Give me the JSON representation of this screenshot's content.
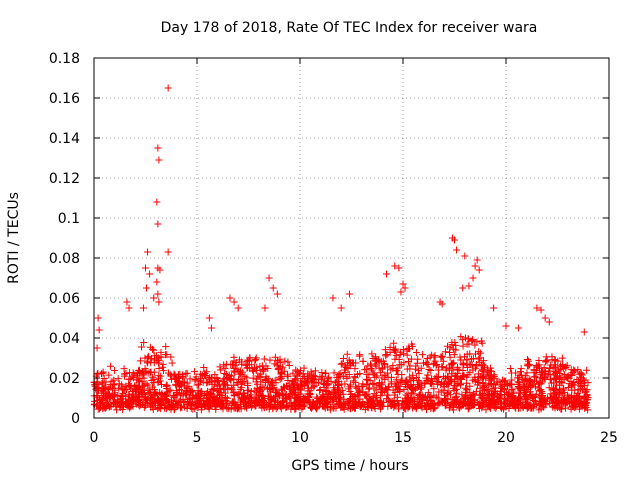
{
  "chart_data": {
    "type": "scatter",
    "title": "Day 178 of 2018, Rate Of TEC Index for receiver wara",
    "xlabel": "GPS time / hours",
    "ylabel": "ROTI / TECUs",
    "xlim": [
      0,
      25
    ],
    "ylim": [
      0,
      0.18
    ],
    "xticks": [
      0,
      5,
      10,
      15,
      20,
      25
    ],
    "yticks": [
      0,
      0.02,
      0.04,
      0.06,
      0.08,
      0.1,
      0.12,
      0.14,
      0.16,
      0.18
    ],
    "xtick_labels": [
      "0",
      "5",
      "10",
      "15",
      "20",
      "25"
    ],
    "ytick_labels": [
      "0",
      "0.02",
      "0.04",
      "0.06",
      "0.08",
      "0.1",
      "0.12",
      "0.14",
      "0.16",
      "0.18"
    ],
    "grid": true,
    "marker": "+",
    "color": "#ff0000",
    "series": [
      {
        "name": "ROTI",
        "points": [
          [
            3.6,
            0.165
          ],
          [
            3.1,
            0.135
          ],
          [
            3.15,
            0.129
          ],
          [
            3.05,
            0.108
          ],
          [
            3.1,
            0.097
          ],
          [
            2.6,
            0.083
          ],
          [
            3.6,
            0.083
          ],
          [
            2.5,
            0.075
          ],
          [
            3.1,
            0.075
          ],
          [
            3.2,
            0.074
          ],
          [
            2.7,
            0.072
          ],
          [
            3.05,
            0.068
          ],
          [
            2.55,
            0.065
          ],
          [
            3.1,
            0.062
          ],
          [
            2.9,
            0.06
          ],
          [
            3.15,
            0.058
          ],
          [
            2.4,
            0.055
          ],
          [
            0.2,
            0.05
          ],
          [
            0.25,
            0.044
          ],
          [
            0.15,
            0.035
          ],
          [
            1.6,
            0.058
          ],
          [
            1.7,
            0.055
          ],
          [
            5.6,
            0.05
          ],
          [
            5.7,
            0.045
          ],
          [
            6.6,
            0.06
          ],
          [
            6.8,
            0.058
          ],
          [
            7.0,
            0.055
          ],
          [
            8.5,
            0.07
          ],
          [
            8.7,
            0.065
          ],
          [
            8.9,
            0.062
          ],
          [
            8.3,
            0.055
          ],
          [
            11.6,
            0.06
          ],
          [
            12.4,
            0.062
          ],
          [
            12.0,
            0.055
          ],
          [
            14.6,
            0.076
          ],
          [
            14.8,
            0.075
          ],
          [
            14.2,
            0.072
          ],
          [
            15.0,
            0.067
          ],
          [
            15.1,
            0.065
          ],
          [
            14.9,
            0.063
          ],
          [
            16.8,
            0.058
          ],
          [
            16.9,
            0.057
          ],
          [
            17.4,
            0.09
          ],
          [
            17.5,
            0.089
          ],
          [
            17.6,
            0.084
          ],
          [
            18.0,
            0.081
          ],
          [
            18.6,
            0.079
          ],
          [
            18.5,
            0.076
          ],
          [
            18.7,
            0.074
          ],
          [
            17.9,
            0.065
          ],
          [
            18.2,
            0.066
          ],
          [
            18.4,
            0.07
          ],
          [
            21.5,
            0.055
          ],
          [
            21.7,
            0.054
          ],
          [
            21.9,
            0.05
          ],
          [
            22.1,
            0.048
          ],
          [
            20.6,
            0.045
          ],
          [
            23.8,
            0.043
          ],
          [
            20.0,
            0.046
          ],
          [
            19.4,
            0.055
          ]
        ]
      }
    ],
    "noise_cloud": {
      "description": "dense band of points",
      "x_range": [
        0,
        24
      ],
      "typical_y_range": [
        0.002,
        0.035
      ]
    }
  }
}
